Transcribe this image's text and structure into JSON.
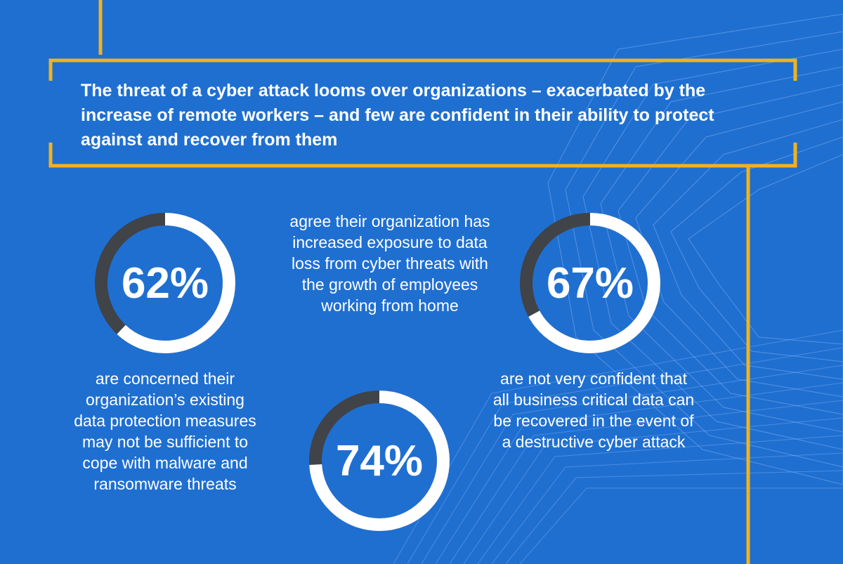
{
  "headline": "The threat of a cyber attack looms over organizations – exacerbated by the increase of remote workers – and few are confident in their ability to protect against and recover from them",
  "colors": {
    "background": "#1f6fd1",
    "frame": "#f2b21b",
    "ring_fill": "#ffffff",
    "ring_track": "#404347",
    "text": "#ffffff"
  },
  "chart_data": {
    "type": "pie",
    "title": "The threat of a cyber attack looms over organizations – exacerbated by the increase of remote workers – and few are confident in their ability to protect against and recover from them",
    "variant": "donut",
    "series": [
      {
        "name": "62%",
        "value": 62,
        "unit": "%",
        "label": "are concerned their organization’s existing data protection measures may not be sufficient to cope with malware and ransomware threats"
      },
      {
        "name": "74%",
        "value": 74,
        "unit": "%",
        "label": "agree their organization has increased exposure to data loss from cyber threats with the growth of employees working from home"
      },
      {
        "name": "67%",
        "value": 67,
        "unit": "%",
        "label": "are not very confident that all business critical data can be recovered in the event of a destructive cyber attack"
      }
    ]
  }
}
